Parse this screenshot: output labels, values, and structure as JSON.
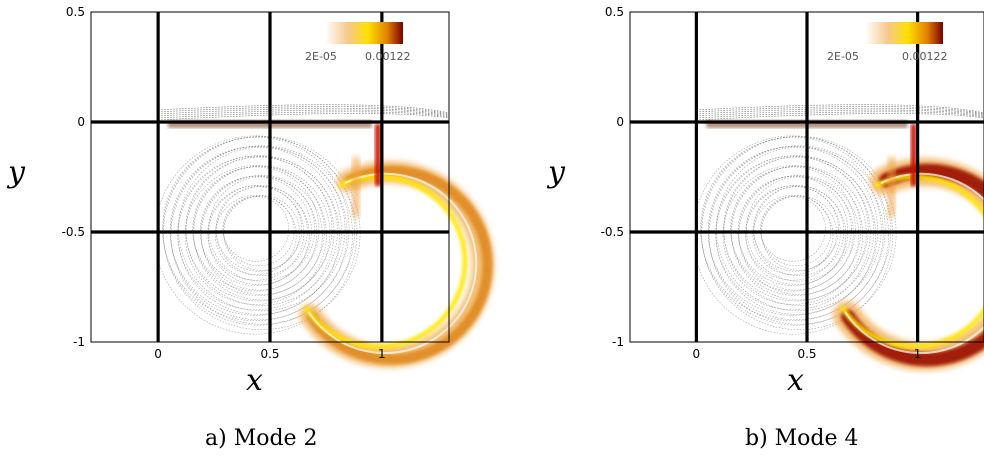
{
  "chart_data": [
    {
      "type": "heatmap",
      "caption": "a) Mode 2",
      "xlabel": "x",
      "ylabel": "y",
      "xlim": [
        -0.3,
        1.3
      ],
      "ylim": [
        -1,
        0.5
      ],
      "xticks": [
        0,
        0.5,
        1
      ],
      "xtick_labels": [
        "0",
        "0.5",
        "1"
      ],
      "yticks": [
        0.5,
        0,
        -0.5,
        -1
      ],
      "ytick_labels": [
        "0.5",
        "0",
        "-0.5",
        "-1"
      ],
      "grid_lines_x": [
        0,
        0.5,
        1
      ],
      "grid_lines_y": [
        0,
        -0.5
      ],
      "colorbar": {
        "min_label": "2E-05",
        "max_label": "0.00122",
        "colors": [
          "#ffffff",
          "#f5c88a",
          "#ffe000",
          "#e08000",
          "#7a0000"
        ]
      }
    },
    {
      "type": "heatmap",
      "caption": "b) Mode 4",
      "xlabel": "x",
      "ylabel": "y",
      "xlim": [
        -0.3,
        1.3
      ],
      "ylim": [
        -1,
        0.5
      ],
      "xticks": [
        0,
        0.5,
        1
      ],
      "xtick_labels": [
        "0",
        "0.5",
        "1"
      ],
      "yticks": [
        0.5,
        0,
        -0.5,
        -1
      ],
      "ytick_labels": [
        "0.5",
        "0",
        "-0.5",
        "-1"
      ],
      "grid_lines_x": [
        0,
        0.5,
        1
      ],
      "grid_lines_y": [
        0,
        -0.5
      ],
      "colorbar": {
        "min_label": "2E-05",
        "max_label": "0.00122",
        "colors": [
          "#ffffff",
          "#f5c88a",
          "#ffe000",
          "#e08000",
          "#7a0000"
        ]
      }
    }
  ]
}
